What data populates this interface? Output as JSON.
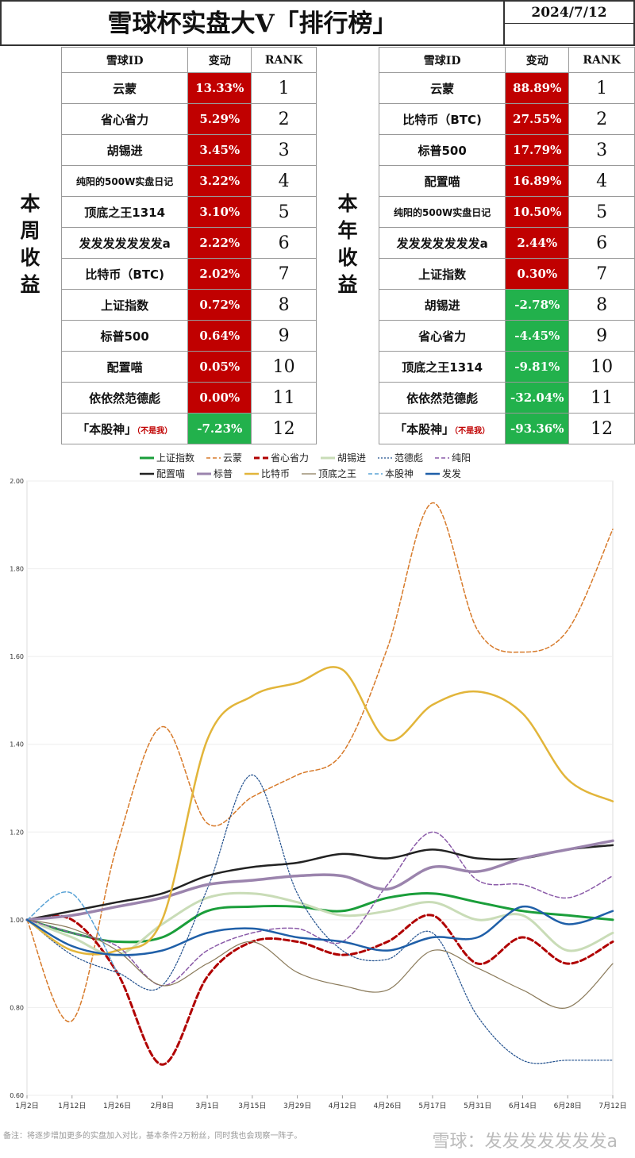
{
  "header": {
    "title": "雪球杯实盘大V「排行榜」",
    "date": "2024/7/12"
  },
  "weekly": {
    "side_label": "本周收益",
    "columns": [
      "雪球ID",
      "变动",
      "RANK"
    ],
    "rows": [
      {
        "name": "云蒙",
        "change": "13.33%",
        "rank": "1",
        "sign": "pos"
      },
      {
        "name": "省心省力",
        "change": "5.29%",
        "rank": "2",
        "sign": "pos"
      },
      {
        "name": "胡锡进",
        "change": "3.45%",
        "rank": "3",
        "sign": "pos"
      },
      {
        "name": "纯阳的500W实盘日记",
        "change": "3.22%",
        "rank": "4",
        "sign": "pos"
      },
      {
        "name": "顶底之王1314",
        "change": "3.10%",
        "rank": "5",
        "sign": "pos"
      },
      {
        "name": "发发发发发发发a",
        "change": "2.22%",
        "rank": "6",
        "sign": "pos"
      },
      {
        "name": "比特币（BTC)",
        "change": "2.02%",
        "rank": "7",
        "sign": "pos"
      },
      {
        "name": "上证指数",
        "change": "0.72%",
        "rank": "8",
        "sign": "pos"
      },
      {
        "name": "标普500",
        "change": "0.64%",
        "rank": "9",
        "sign": "pos"
      },
      {
        "name": "配置喵",
        "change": "0.05%",
        "rank": "10",
        "sign": "pos"
      },
      {
        "name": "依依然范德彪",
        "change": "0.00%",
        "rank": "11",
        "sign": "pos"
      },
      {
        "name": "「本股神」",
        "note": "（不是我）",
        "change": "-7.23%",
        "rank": "12",
        "sign": "neg"
      }
    ]
  },
  "yearly": {
    "side_label": "本年收益",
    "columns": [
      "雪球ID",
      "变动",
      "RANK"
    ],
    "rows": [
      {
        "name": "云蒙",
        "change": "88.89%",
        "rank": "1",
        "sign": "pos"
      },
      {
        "name": "比特币（BTC)",
        "change": "27.55%",
        "rank": "2",
        "sign": "pos"
      },
      {
        "name": "标普500",
        "change": "17.79%",
        "rank": "3",
        "sign": "pos"
      },
      {
        "name": "配置喵",
        "change": "16.89%",
        "rank": "4",
        "sign": "pos"
      },
      {
        "name": "纯阳的500W实盘日记",
        "change": "10.50%",
        "rank": "5",
        "sign": "pos"
      },
      {
        "name": "发发发发发发发a",
        "change": "2.44%",
        "rank": "6",
        "sign": "pos"
      },
      {
        "name": "上证指数",
        "change": "0.30%",
        "rank": "7",
        "sign": "pos"
      },
      {
        "name": "胡锡进",
        "change": "-2.78%",
        "rank": "8",
        "sign": "neg"
      },
      {
        "name": "省心省力",
        "change": "-4.45%",
        "rank": "9",
        "sign": "neg"
      },
      {
        "name": "顶底之王1314",
        "change": "-9.81%",
        "rank": "10",
        "sign": "neg"
      },
      {
        "name": "依依然范德彪",
        "change": "-32.04%",
        "rank": "11",
        "sign": "neg"
      },
      {
        "name": "「本股神」",
        "note": "（不是我）",
        "change": "-93.36%",
        "rank": "12",
        "sign": "neg"
      }
    ]
  },
  "chart_data": {
    "type": "line",
    "x": [
      "1月2日",
      "1月12日",
      "1月26日",
      "2月8日",
      "3月1日",
      "3月15日",
      "3月29日",
      "4月12日",
      "4月26日",
      "5月17日",
      "5月31日",
      "6月14日",
      "6月28日",
      "7月12日"
    ],
    "ylim": [
      0.6,
      2.0
    ],
    "yticks": [
      "0.60",
      "0.80",
      "1.00",
      "1.20",
      "1.40",
      "1.60",
      "1.80",
      "2.00"
    ],
    "legend_position": "top",
    "series": [
      {
        "name": "上证指数",
        "color": "#1a9e3a",
        "dash": "solid",
        "width": 3,
        "values": [
          1.0,
          0.97,
          0.95,
          0.96,
          1.02,
          1.03,
          1.03,
          1.02,
          1.05,
          1.06,
          1.04,
          1.02,
          1.01,
          1.0
        ]
      },
      {
        "name": "云蒙",
        "color": "#d77a2a",
        "dash": "5,3",
        "width": 1.5,
        "values": [
          1.0,
          0.77,
          1.17,
          1.44,
          1.22,
          1.28,
          1.33,
          1.38,
          1.62,
          1.95,
          1.66,
          1.61,
          1.66,
          1.89
        ]
      },
      {
        "name": "省心省力",
        "color": "#b00000",
        "dash": "7,4",
        "width": 3,
        "values": [
          1.0,
          1.0,
          0.88,
          0.67,
          0.87,
          0.95,
          0.95,
          0.92,
          0.95,
          1.01,
          0.9,
          0.96,
          0.9,
          0.95
        ]
      },
      {
        "name": "胡锡进",
        "color": "#c9dcb7",
        "dash": "solid",
        "width": 3,
        "values": [
          1.0,
          0.96,
          0.92,
          0.99,
          1.05,
          1.06,
          1.04,
          1.01,
          1.02,
          1.04,
          1.0,
          1.01,
          0.93,
          0.97
        ]
      },
      {
        "name": "范德彪",
        "color": "#1f4e8c",
        "dash": "2,2",
        "width": 1.2,
        "values": [
          1.0,
          0.92,
          0.88,
          0.85,
          1.07,
          1.33,
          1.06,
          0.93,
          0.91,
          0.97,
          0.78,
          0.68,
          0.68,
          0.68
        ]
      },
      {
        "name": "纯阳",
        "color": "#8a5aa8",
        "dash": "5,3",
        "width": 1.5,
        "values": [
          1.0,
          0.97,
          0.94,
          0.85,
          0.93,
          0.97,
          0.98,
          0.95,
          1.08,
          1.2,
          1.09,
          1.08,
          1.05,
          1.1
        ]
      },
      {
        "name": "配置喵",
        "color": "#222222",
        "dash": "solid",
        "width": 2.5,
        "values": [
          1.0,
          1.02,
          1.04,
          1.06,
          1.1,
          1.12,
          1.13,
          1.15,
          1.14,
          1.16,
          1.14,
          1.14,
          1.16,
          1.17
        ]
      },
      {
        "name": "标普",
        "color": "#9b84ad",
        "dash": "solid",
        "width": 3.5,
        "values": [
          1.0,
          1.01,
          1.03,
          1.05,
          1.08,
          1.09,
          1.1,
          1.1,
          1.07,
          1.12,
          1.11,
          1.14,
          1.16,
          1.18
        ]
      },
      {
        "name": "比特币",
        "color": "#e2b53a",
        "dash": "solid",
        "width": 2.5,
        "values": [
          1.0,
          0.93,
          0.93,
          1.0,
          1.41,
          1.51,
          1.54,
          1.57,
          1.41,
          1.49,
          1.52,
          1.47,
          1.32,
          1.27
        ]
      },
      {
        "name": "顶底之王",
        "color": "#8a7a5a",
        "dash": "solid",
        "width": 1.2,
        "values": [
          1.0,
          0.98,
          0.93,
          0.85,
          0.9,
          0.95,
          0.88,
          0.85,
          0.84,
          0.93,
          0.89,
          0.84,
          0.8,
          0.9
        ]
      },
      {
        "name": "本股神",
        "color": "#5aa3d6",
        "dash": "5,3",
        "width": 1.5,
        "values": [
          1.0,
          1.06,
          0.88,
          null,
          null,
          null,
          null,
          null,
          null,
          null,
          null,
          null,
          null,
          null
        ]
      },
      {
        "name": "发发",
        "color": "#1f5fa8",
        "dash": "solid",
        "width": 2.5,
        "values": [
          1.0,
          0.94,
          0.92,
          0.93,
          0.97,
          0.98,
          0.96,
          0.95,
          0.93,
          0.96,
          0.96,
          1.03,
          0.99,
          1.02
        ]
      }
    ]
  },
  "footer": {
    "note": "备注：将逐步增加更多的实盘加入对比，基本条件2万粉丝，同时我也会观察一阵子。",
    "watermark": "雪球：发发发发发发发a"
  }
}
